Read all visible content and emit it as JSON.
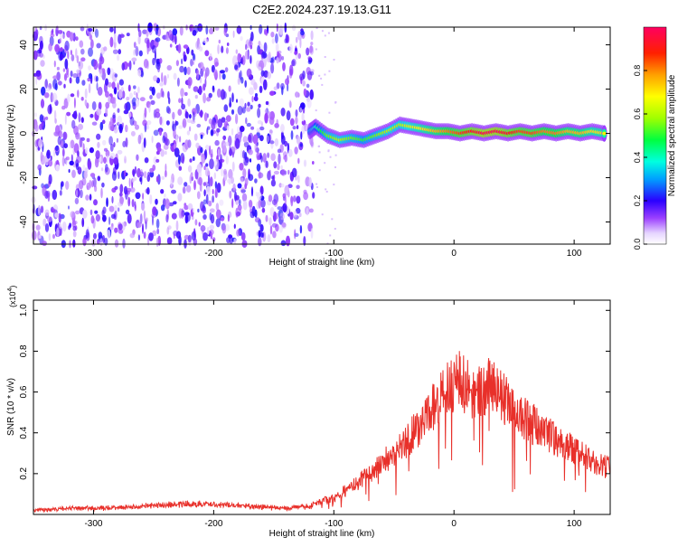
{
  "title": "C2E2.2024.237.19.13.G11",
  "chart_data": [
    {
      "type": "heatmap",
      "xlabel": "Height of straight line (km)",
      "ylabel": "Frequency (Hz)",
      "xlim": [
        -350,
        130
      ],
      "ylim": [
        -50,
        48
      ],
      "xticks": [
        -300,
        -200,
        -100,
        0,
        100
      ],
      "xtick_labels": [
        "-300",
        "-200",
        "-100",
        "0",
        "100"
      ],
      "yticks": [
        -40,
        -20,
        0,
        20,
        40
      ],
      "ytick_labels": [
        "-40",
        "-20",
        "0",
        "20",
        "40"
      ],
      "colorbar": {
        "label": "Normalized spectral amplitude",
        "range": [
          0,
          1
        ],
        "ticks": [
          0.0,
          0.2,
          0.4,
          0.6,
          0.8
        ],
        "tick_labels": [
          "0.0",
          "0.2",
          "0.4",
          "0.6",
          "0.8"
        ]
      },
      "noise_region_x": [
        -350,
        -117
      ],
      "ridge": {
        "description": "narrow high-amplitude frequency ridge",
        "points": [
          {
            "x": -120,
            "y": 1,
            "amp": 0.35
          },
          {
            "x": -115,
            "y": 3,
            "amp": 0.4
          },
          {
            "x": -105,
            "y": -1,
            "amp": 0.55
          },
          {
            "x": -95,
            "y": -3,
            "amp": 0.6
          },
          {
            "x": -85,
            "y": -2,
            "amp": 0.55
          },
          {
            "x": -75,
            "y": -3,
            "amp": 0.5
          },
          {
            "x": -65,
            "y": -1,
            "amp": 0.55
          },
          {
            "x": -55,
            "y": 1,
            "amp": 0.6
          },
          {
            "x": -45,
            "y": 4,
            "amp": 0.6
          },
          {
            "x": -35,
            "y": 3,
            "amp": 0.65
          },
          {
            "x": -25,
            "y": 2,
            "amp": 0.7
          },
          {
            "x": -15,
            "y": 1,
            "amp": 0.75
          },
          {
            "x": -5,
            "y": 1,
            "amp": 0.8
          },
          {
            "x": 5,
            "y": 0,
            "amp": 0.85
          },
          {
            "x": 15,
            "y": 1,
            "amp": 0.9
          },
          {
            "x": 25,
            "y": 0,
            "amp": 0.95
          },
          {
            "x": 35,
            "y": 1,
            "amp": 0.95
          },
          {
            "x": 45,
            "y": 0,
            "amp": 0.9
          },
          {
            "x": 55,
            "y": 1,
            "amp": 0.85
          },
          {
            "x": 65,
            "y": 0,
            "amp": 0.85
          },
          {
            "x": 75,
            "y": 1,
            "amp": 0.8
          },
          {
            "x": 85,
            "y": 0,
            "amp": 0.8
          },
          {
            "x": 95,
            "y": 1,
            "amp": 0.75
          },
          {
            "x": 105,
            "y": 0,
            "amp": 0.75
          },
          {
            "x": 115,
            "y": 1,
            "amp": 0.7
          },
          {
            "x": 125,
            "y": 0,
            "amp": 0.7
          }
        ]
      },
      "grid": false
    },
    {
      "type": "line",
      "xlabel": "Height of straight line (km)",
      "ylabel": "SNR (10 * v/v)",
      "yscale_label": "(x10",
      "yscale_exponent": "4",
      "xlim": [
        -350,
        130
      ],
      "ylim": [
        0,
        1.05
      ],
      "xticks": [
        -300,
        -200,
        -100,
        0,
        100
      ],
      "xtick_labels": [
        "-300",
        "-200",
        "-100",
        "0",
        "100"
      ],
      "yticks": [
        0.2,
        0.4,
        0.6,
        0.8,
        1.0
      ],
      "ytick_labels": [
        "0.2",
        "0.4",
        "0.6",
        "0.8",
        "1.0"
      ],
      "series": [
        {
          "color": "#e8302a",
          "x": [
            -350,
            -320,
            -290,
            -260,
            -230,
            -200,
            -170,
            -140,
            -120,
            -110,
            -100,
            -90,
            -80,
            -70,
            -60,
            -50,
            -40,
            -30,
            -20,
            -10,
            0,
            5,
            10,
            20,
            30,
            40,
            50,
            60,
            70,
            80,
            90,
            100,
            110,
            120,
            130
          ],
          "values": [
            0.02,
            0.03,
            0.03,
            0.04,
            0.05,
            0.05,
            0.04,
            0.03,
            0.04,
            0.07,
            0.08,
            0.12,
            0.16,
            0.2,
            0.26,
            0.3,
            0.36,
            0.42,
            0.5,
            0.58,
            0.64,
            0.7,
            0.62,
            0.6,
            0.63,
            0.58,
            0.52,
            0.47,
            0.42,
            0.38,
            0.35,
            0.31,
            0.28,
            0.25,
            0.23
          ]
        }
      ],
      "grid": false
    }
  ]
}
